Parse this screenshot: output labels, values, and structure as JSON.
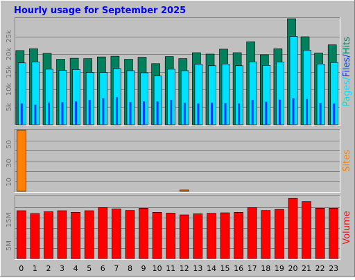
{
  "title": "Hourly usage for September 2025",
  "colors": {
    "background": "#C0C0C0",
    "title": "#0000FF",
    "hits": "#00805C",
    "files": "#00E0FF",
    "pages": "#0040FF",
    "sites": "#FF8000",
    "volume": "#FF0000",
    "grid": "#808080"
  },
  "chart_data": [
    {
      "type": "bar",
      "panel": "hits-files-pages",
      "categories": [
        "0",
        "1",
        "2",
        "3",
        "4",
        "5",
        "6",
        "7",
        "8",
        "9",
        "10",
        "11",
        "12",
        "13",
        "14",
        "15",
        "16",
        "17",
        "18",
        "19",
        "20",
        "21",
        "22",
        "23"
      ],
      "series": [
        {
          "name": "Hits",
          "values": [
            21000,
            21500,
            20200,
            18500,
            18800,
            18700,
            19200,
            19400,
            18500,
            19100,
            17300,
            19300,
            18700,
            20400,
            20000,
            21400,
            20400,
            23500,
            19800,
            21500,
            30000,
            24900,
            20300,
            22600
          ]
        },
        {
          "name": "Files",
          "values": [
            17500,
            17800,
            15700,
            15400,
            15600,
            14800,
            14800,
            15900,
            15300,
            14700,
            13800,
            15700,
            15300,
            17100,
            16700,
            17200,
            16700,
            17800,
            16800,
            17700,
            25000,
            21100,
            17200,
            17600
          ]
        },
        {
          "name": "Pages",
          "values": [
            6000,
            5700,
            6300,
            6400,
            6600,
            7000,
            7500,
            7800,
            6400,
            6600,
            6600,
            7000,
            6200,
            6000,
            6200,
            6100,
            6000,
            7000,
            6500,
            7100,
            7500,
            7300,
            6100,
            6000
          ]
        }
      ],
      "ylabel": "Pages/Files/Hits",
      "ylim": [
        0,
        30000
      ],
      "yticks": [
        "5k",
        "10k",
        "15k",
        "20k",
        "25k"
      ]
    },
    {
      "type": "bar",
      "panel": "sites",
      "categories": [
        "0",
        "1",
        "2",
        "3",
        "4",
        "5",
        "6",
        "7",
        "8",
        "9",
        "10",
        "11",
        "12",
        "13",
        "14",
        "15",
        "16",
        "17",
        "18",
        "19",
        "20",
        "21",
        "22",
        "23"
      ],
      "series": [
        {
          "name": "Sites",
          "values": [
            65,
            0,
            0,
            0,
            0,
            0,
            0,
            0,
            0,
            0,
            0,
            0,
            1,
            0,
            0,
            0,
            0,
            0,
            0,
            0,
            0,
            0,
            0,
            0
          ]
        }
      ],
      "ylabel": "Sites",
      "ylim": [
        0,
        65
      ],
      "yticks": [
        "10",
        "30",
        "50"
      ]
    },
    {
      "type": "bar",
      "panel": "volume",
      "categories": [
        "0",
        "1",
        "2",
        "3",
        "4",
        "5",
        "6",
        "7",
        "8",
        "9",
        "10",
        "11",
        "12",
        "13",
        "14",
        "15",
        "16",
        "17",
        "18",
        "19",
        "20",
        "21",
        "22",
        "23"
      ],
      "series": [
        {
          "name": "Volume",
          "values": [
            1.86,
            1.75,
            1.82,
            1.86,
            1.8,
            1.86,
            1.98,
            1.93,
            1.87,
            1.96,
            1.8,
            1.77,
            1.7,
            1.74,
            1.76,
            1.78,
            1.8,
            1.98,
            1.87,
            1.91,
            2.34,
            2.22,
            1.96,
            1.96
          ]
        }
      ],
      "ylabel": "Volume",
      "ylim": [
        0,
        2.4
      ],
      "yticks": [
        "5M",
        "15M"
      ]
    }
  ]
}
